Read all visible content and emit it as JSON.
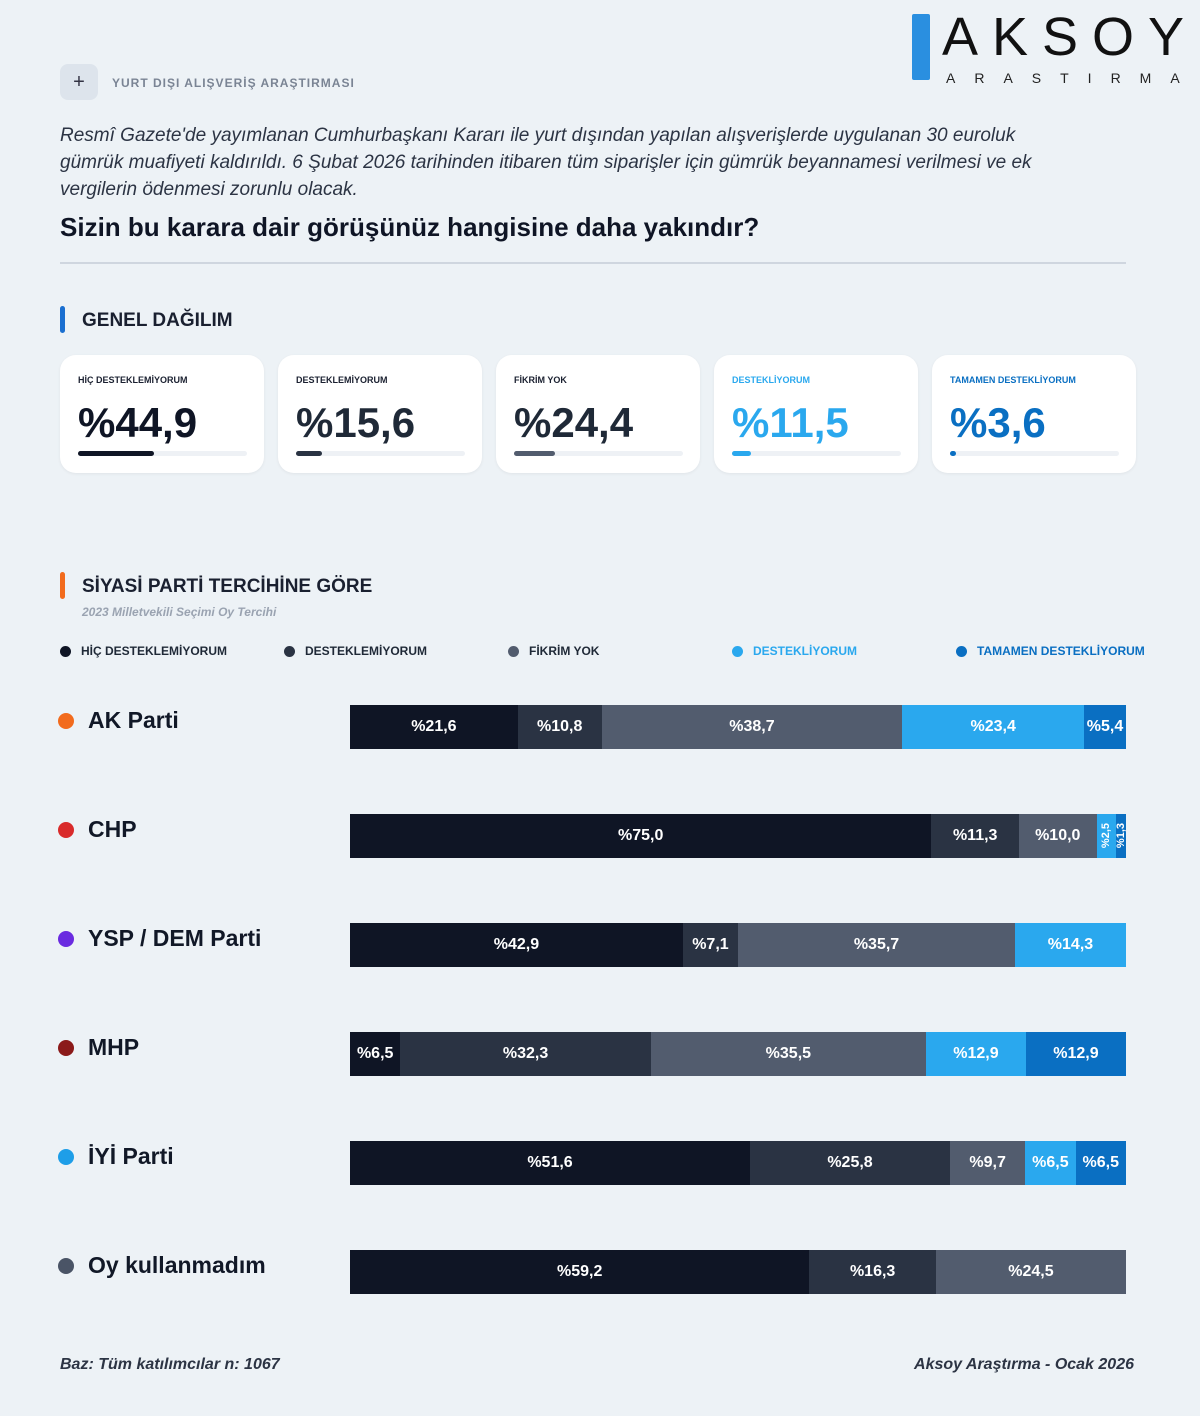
{
  "brand": {
    "name": "AKSOY",
    "sub": "ARASTIRMA"
  },
  "header": {
    "tag": "YURT DIŞI ALIŞVERİŞ ARAŞTIRMASI",
    "plus_icon": "+",
    "intro": "Resmî Gazete'de yayımlanan Cumhurbaşkanı Kararı ile yurt dışından yapılan alışverişlerde uygulanan 30 euroluk gümrük muafiyeti kaldırıldı. 6 Şubat 2026 tarihinden itibaren tüm siparişler için gümrük beyannamesi verilmesi ve ek vergilerin ödenmesi zorunlu olacak.",
    "question": "Sizin bu karara dair görüşünüz hangisine daha yakındır?"
  },
  "general": {
    "title": "GENEL DAĞILIM",
    "accent": "#1a6fd0",
    "cards": [
      {
        "label": "HİÇ DESTEKLEMİYORUM",
        "value": "%44,9",
        "pct": 44.9,
        "color": "#0f1525"
      },
      {
        "label": "DESTEKLEMİYORUM",
        "value": "%15,6",
        "pct": 15.6,
        "color": "#2a3343"
      },
      {
        "label": "FİKRİM YOK",
        "value": "%24,4",
        "pct": 24.4,
        "color": "#525c6e"
      },
      {
        "label": "DESTEKLİYORUM",
        "value": "%11,5",
        "pct": 11.5,
        "color": "#2aa8ee"
      },
      {
        "label": "TAMAMEN DESTEKLİYORUM",
        "value": "%3,6",
        "pct": 3.6,
        "color": "#0a6fc2"
      }
    ]
  },
  "party_section": {
    "title": "SİYASİ PARTİ TERCİHİNE GÖRE",
    "subtitle": "2023 Milletvekili Seçimi Oy Tercihi",
    "accent": "#f26b1d"
  },
  "chart_data": {
    "type": "bar",
    "stacked": true,
    "orientation": "horizontal",
    "legend": "top",
    "series": [
      {
        "name": "HİÇ DESTEKLEMİYORUM",
        "color": "#0f1525",
        "values": [
          21.6,
          75.0,
          42.9,
          6.5,
          51.6,
          59.2
        ]
      },
      {
        "name": "DESTEKLEMİYORUM",
        "color": "#2a3343",
        "values": [
          10.8,
          11.3,
          7.1,
          32.3,
          25.8,
          16.3
        ]
      },
      {
        "name": "FİKRİM YOK",
        "color": "#525c6e",
        "values": [
          38.7,
          10.0,
          35.7,
          35.5,
          9.7,
          24.5
        ]
      },
      {
        "name": "DESTEKLİYORUM",
        "color": "#2aa8ee",
        "values": [
          23.4,
          2.5,
          14.3,
          12.9,
          6.5,
          0
        ]
      },
      {
        "name": "TAMAMEN DESTEKLİYORUM",
        "color": "#0a6fc2",
        "values": [
          5.4,
          1.3,
          0,
          12.9,
          6.5,
          0
        ]
      }
    ],
    "categories": [
      "AK Parti",
      "CHP",
      "YSP / DEM Parti",
      "MHP",
      "İYİ Parti",
      "Oy kullanmadım"
    ],
    "category_colors": [
      "#f26b1d",
      "#d92b2b",
      "#6a2be0",
      "#8b1a1a",
      "#1e9ee8",
      "#4a5466"
    ]
  },
  "footer": {
    "base": "Baz: Tüm katılımcılar n: 1067",
    "source": "Aksoy Araştırma - Ocak 2026"
  }
}
